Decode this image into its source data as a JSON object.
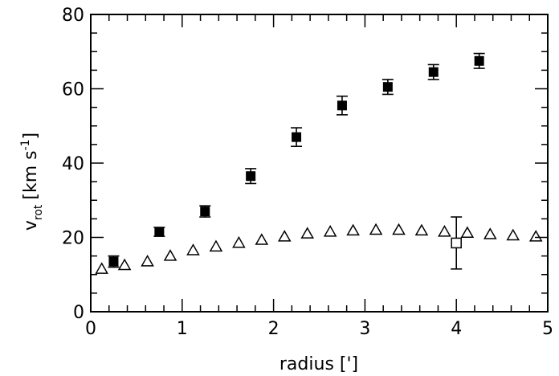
{
  "chart_data": {
    "type": "scatter",
    "title": "",
    "xlabel": "radius [']",
    "ylabel": {
      "base": "v",
      "subscript": "rot",
      "units": "[km s",
      "exponent": "-1",
      "close": "]"
    },
    "xlim": [
      0,
      5
    ],
    "ylim": [
      0,
      80
    ],
    "x_ticks": [
      "0",
      "1",
      "2",
      "3",
      "4",
      "5"
    ],
    "y_ticks": [
      "0",
      "20",
      "40",
      "60",
      "80"
    ],
    "grid": false,
    "series": [
      {
        "marker": "filled-square",
        "color": "#000000",
        "points": [
          {
            "x": 0.25,
            "y": 13.5,
            "err": 1.5
          },
          {
            "x": 0.75,
            "y": 21.5,
            "err": 1.2
          },
          {
            "x": 1.25,
            "y": 27.0,
            "err": 1.5
          },
          {
            "x": 1.75,
            "y": 36.5,
            "err": 2.0
          },
          {
            "x": 2.25,
            "y": 47.0,
            "err": 2.5
          },
          {
            "x": 2.75,
            "y": 55.5,
            "err": 2.5
          },
          {
            "x": 3.25,
            "y": 60.5,
            "err": 2.0
          },
          {
            "x": 3.75,
            "y": 64.5,
            "err": 2.0
          },
          {
            "x": 4.25,
            "y": 67.5,
            "err": 2.0
          }
        ]
      },
      {
        "marker": "open-triangle",
        "color": "#000000",
        "points": [
          {
            "x": 0.12,
            "y": 11.5
          },
          {
            "x": 0.37,
            "y": 12.5
          },
          {
            "x": 0.62,
            "y": 13.5
          },
          {
            "x": 0.87,
            "y": 15.0
          },
          {
            "x": 1.12,
            "y": 16.5
          },
          {
            "x": 1.37,
            "y": 17.5
          },
          {
            "x": 1.62,
            "y": 18.5
          },
          {
            "x": 1.87,
            "y": 19.3
          },
          {
            "x": 2.12,
            "y": 20.2
          },
          {
            "x": 2.37,
            "y": 21.0
          },
          {
            "x": 2.62,
            "y": 21.5
          },
          {
            "x": 2.87,
            "y": 21.8
          },
          {
            "x": 3.12,
            "y": 22.0
          },
          {
            "x": 3.37,
            "y": 22.0
          },
          {
            "x": 3.62,
            "y": 21.8
          },
          {
            "x": 3.87,
            "y": 21.5
          },
          {
            "x": 4.12,
            "y": 21.2
          },
          {
            "x": 4.37,
            "y": 20.8
          },
          {
            "x": 4.62,
            "y": 20.5
          },
          {
            "x": 4.87,
            "y": 20.2
          }
        ]
      },
      {
        "marker": "open-square",
        "color": "#000000",
        "points": [
          {
            "x": 4.0,
            "y": 18.5,
            "err": 7.0
          }
        ]
      }
    ]
  }
}
